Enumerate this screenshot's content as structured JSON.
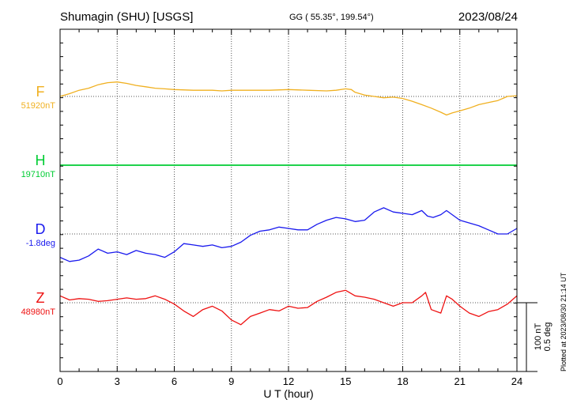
{
  "header": {
    "station": "Shumagin (SHU)  [USGS]",
    "coords": "GG ( 55.35°, 199.54°)",
    "date": "2023/08/24"
  },
  "plotted_note": "Plotted at 2023/08/30 21:14 UT",
  "scale": {
    "nt": "100 nT",
    "deg": "0.5 deg",
    "nt_value": 100,
    "deg_value": 0.5
  },
  "colors": {
    "F": "#f0b020",
    "H": "#00cc33",
    "D": "#1a1aee",
    "Z": "#ee1111",
    "grid": "#555555",
    "axis": "#000000"
  },
  "chart_data": {
    "type": "line",
    "xlabel": "U T (hour)",
    "xlim": [
      0,
      24
    ],
    "x_ticks": [
      0,
      3,
      6,
      9,
      12,
      15,
      18,
      21,
      24
    ],
    "x_tick_labels": [
      "0",
      "3",
      "6",
      "9",
      "12",
      "15",
      "18",
      "21",
      "24"
    ],
    "grid": true,
    "series": [
      {
        "name": "F",
        "baseline_label": "51920nT",
        "baseline": 51920,
        "unit": "nT",
        "x": [
          0,
          0.5,
          1,
          1.5,
          2,
          2.5,
          3,
          3.5,
          4,
          4.5,
          5,
          5.5,
          6,
          7,
          8,
          8.5,
          9,
          10,
          11,
          12,
          13,
          14,
          14.5,
          15,
          15.3,
          15.5,
          16,
          16.5,
          17,
          17.5,
          18,
          18.5,
          19,
          19.5,
          20,
          20.3,
          20.6,
          21,
          21.5,
          22,
          22.5,
          23,
          23.5,
          24
        ],
        "y": [
          51920,
          51924,
          51929,
          51932,
          51937,
          51940,
          51941,
          51939,
          51936,
          51934,
          51932,
          51931,
          51930,
          51929,
          51929,
          51928,
          51929,
          51929,
          51929,
          51930,
          51929,
          51928,
          51929,
          51931,
          51930,
          51926,
          51922,
          51920,
          51918,
          51919,
          51917,
          51913,
          51908,
          51903,
          51897,
          51893,
          51896,
          51899,
          51903,
          51908,
          51911,
          51914,
          51920,
          51921
        ]
      },
      {
        "name": "H",
        "baseline_label": "19710nT",
        "baseline": 19710,
        "unit": "nT",
        "x": [
          0,
          24
        ],
        "y": [
          19710,
          19710
        ]
      },
      {
        "name": "D",
        "baseline_label": "-1.8deg",
        "baseline": -1.8,
        "unit": "deg",
        "x": [
          0,
          0.5,
          1,
          1.5,
          2,
          2.5,
          3,
          3.5,
          4,
          4.5,
          5,
          5.5,
          6,
          6.5,
          7,
          7.5,
          8,
          8.5,
          9,
          9.5,
          10,
          10.5,
          11,
          11.5,
          12,
          12.5,
          13,
          13.5,
          14,
          14.5,
          15,
          15.5,
          16,
          16.5,
          17,
          17.5,
          18,
          18.5,
          19,
          19.3,
          19.6,
          20,
          20.3,
          20.6,
          21,
          21.5,
          22,
          22.5,
          23,
          23.5,
          24
        ],
        "y": [
          -1.97,
          -2.0,
          -1.99,
          -1.96,
          -1.91,
          -1.94,
          -1.93,
          -1.95,
          -1.92,
          -1.94,
          -1.95,
          -1.97,
          -1.93,
          -1.87,
          -1.88,
          -1.89,
          -1.88,
          -1.9,
          -1.89,
          -1.86,
          -1.81,
          -1.78,
          -1.77,
          -1.75,
          -1.76,
          -1.77,
          -1.77,
          -1.73,
          -1.7,
          -1.68,
          -1.69,
          -1.71,
          -1.7,
          -1.64,
          -1.61,
          -1.64,
          -1.65,
          -1.66,
          -1.63,
          -1.67,
          -1.68,
          -1.66,
          -1.63,
          -1.66,
          -1.7,
          -1.72,
          -1.74,
          -1.77,
          -1.8,
          -1.8,
          -1.76
        ]
      },
      {
        "name": "Z",
        "baseline_label": "48980nT",
        "baseline": 48980,
        "unit": "nT",
        "x": [
          0,
          0.5,
          1,
          1.5,
          2,
          2.5,
          3,
          3.5,
          4,
          4.5,
          5,
          5.5,
          6,
          6.5,
          7,
          7.5,
          8,
          8.5,
          9,
          9.5,
          10,
          10.5,
          11,
          11.5,
          12,
          12.5,
          13,
          13.5,
          14,
          14.5,
          15,
          15.5,
          16,
          16.5,
          17,
          17.5,
          18,
          18.5,
          19,
          19.2,
          19.5,
          20,
          20.3,
          20.6,
          21,
          21.5,
          22,
          22.5,
          23,
          23.5,
          24
        ],
        "y": [
          48990,
          48984,
          48986,
          48985,
          48982,
          48983,
          48985,
          48987,
          48985,
          48986,
          48990,
          48985,
          48978,
          48968,
          48960,
          48970,
          48975,
          48968,
          48955,
          48948,
          48960,
          48965,
          48970,
          48968,
          48975,
          48972,
          48973,
          48982,
          48988,
          48995,
          48998,
          48990,
          48988,
          48985,
          48980,
          48975,
          48980,
          48980,
          48990,
          48995,
          48970,
          48965,
          48990,
          48985,
          48975,
          48965,
          48960,
          48967,
          48970,
          48978,
          48990
        ]
      }
    ]
  }
}
